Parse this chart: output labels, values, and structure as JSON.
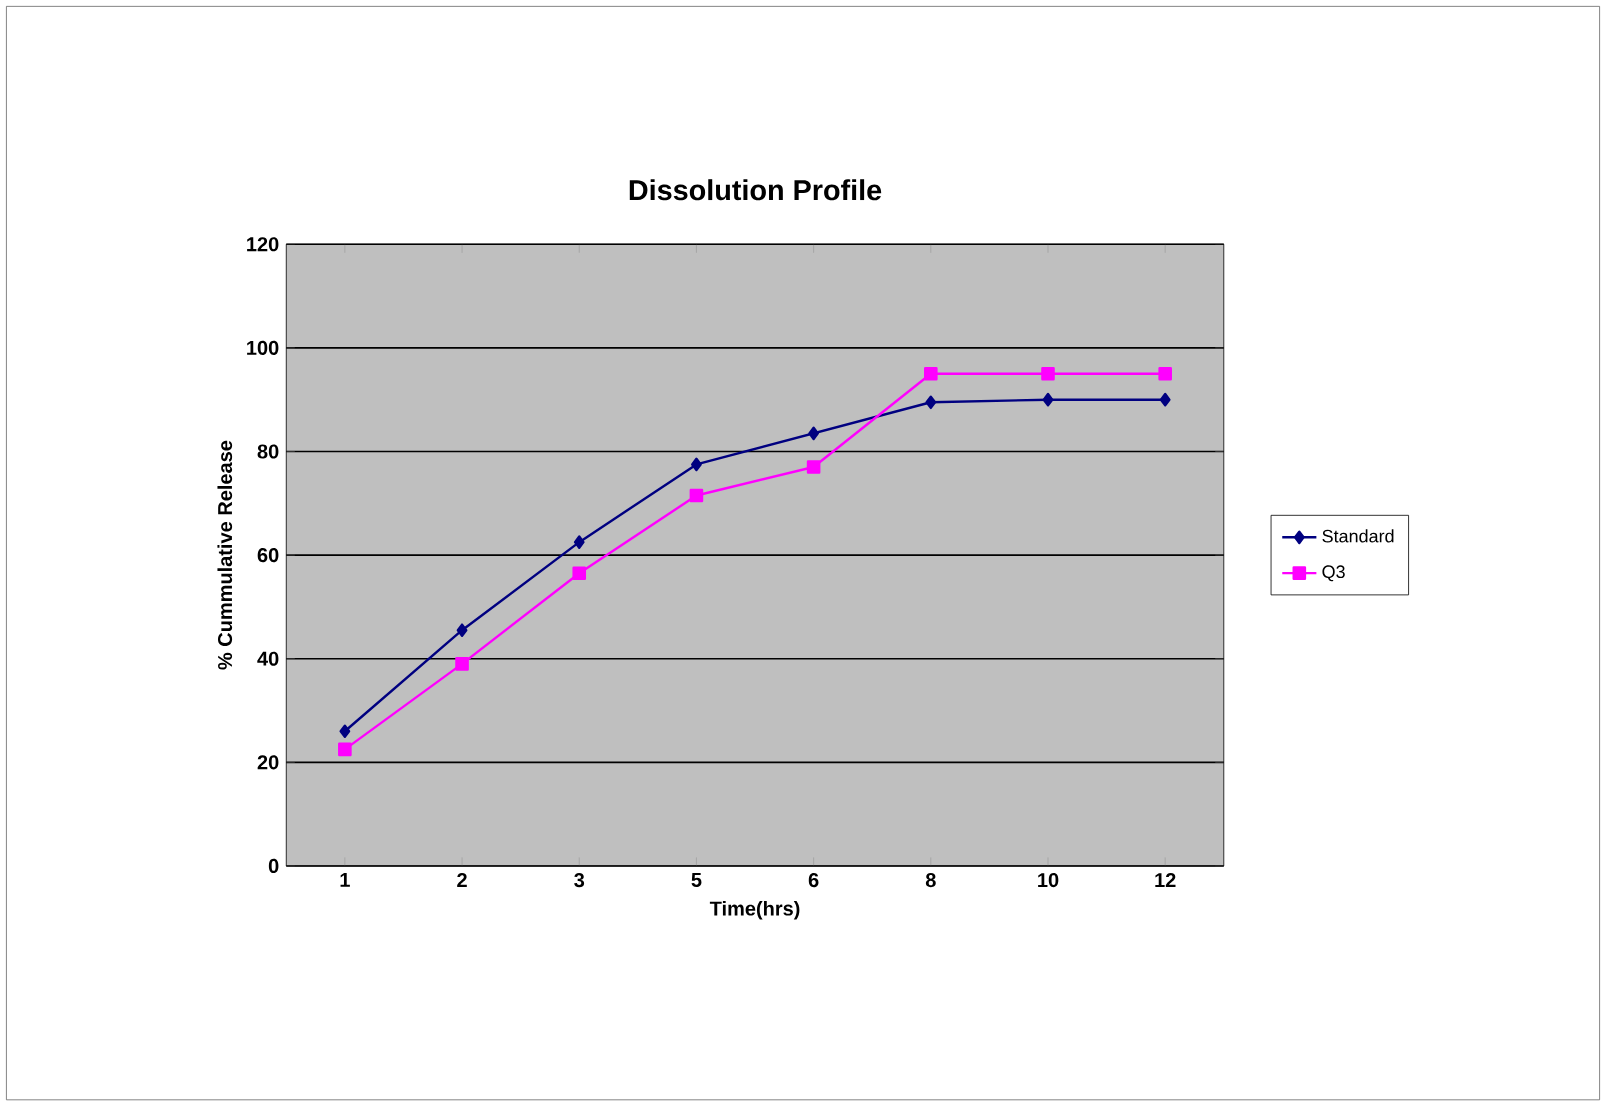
{
  "chart_data": {
    "type": "line",
    "title": "Dissolution Profile",
    "xlabel": "Time(hrs)",
    "ylabel": "% Cummulative Release",
    "categories": [
      "1",
      "2",
      "3",
      "5",
      "6",
      "8",
      "10",
      "12"
    ],
    "series": [
      {
        "name": "Standard",
        "color": "#000080",
        "marker": "diamond",
        "values": [
          26,
          45.5,
          62.5,
          77.5,
          83.5,
          89.5,
          90,
          90
        ]
      },
      {
        "name": "Q3",
        "color": "#ff00ff",
        "marker": "square",
        "values": [
          22.5,
          39,
          56.5,
          71.5,
          77,
          95,
          95,
          95
        ]
      }
    ],
    "ylim": [
      0,
      120
    ],
    "yticks": [
      0,
      20,
      40,
      60,
      80,
      100,
      120
    ],
    "grid": "y",
    "legend": "right",
    "line_style": "solid"
  }
}
